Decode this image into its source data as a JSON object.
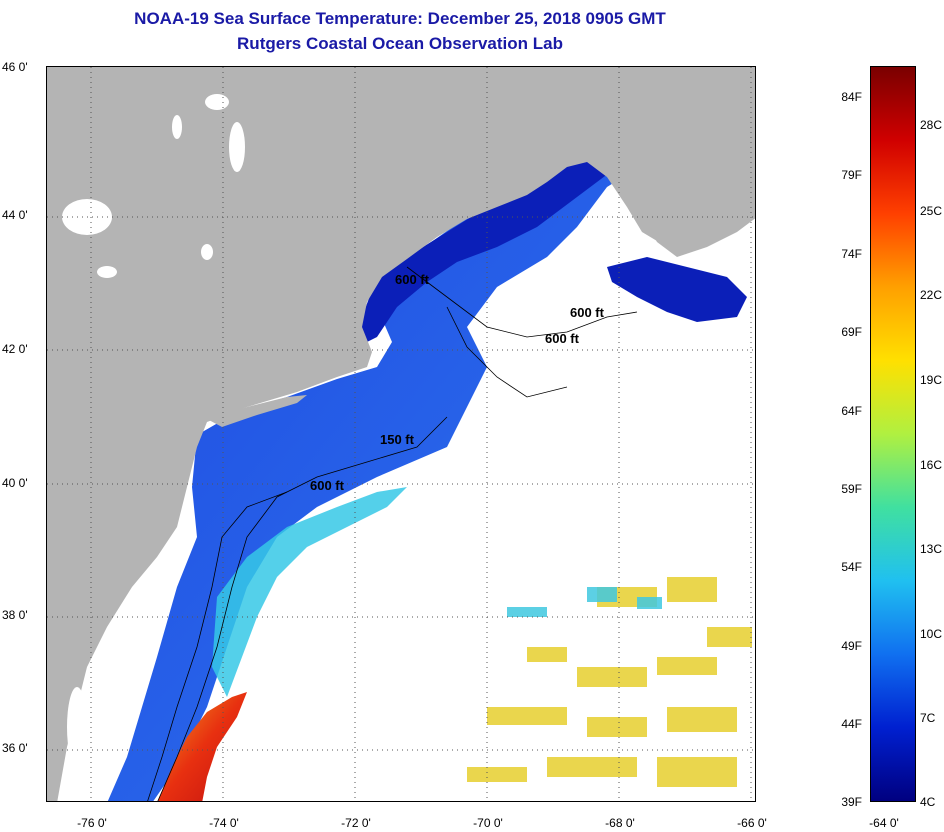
{
  "title": {
    "line1": "NOAA-19 Sea Surface Temperature:  December 25, 2018 0905 GMT",
    "line2": "Rutgers Coastal Ocean Observation Lab"
  },
  "map": {
    "lat_labels": [
      "46 0'",
      "44 0'",
      "42 0'",
      "40 0'",
      "38 0'",
      "36 0'"
    ],
    "lon_labels": [
      "-76 0'",
      "-74 0'",
      "-72 0'",
      "-70 0'",
      "-68 0'",
      "-66 0'",
      "-64 0'"
    ],
    "contour_labels": [
      "600 ft",
      "600 ft",
      "600 ft",
      "150 ft",
      "600 ft"
    ],
    "colors": {
      "land": "#b4b4b4",
      "lakes": "#ffffff",
      "cloud": "#ffffff",
      "deep_blue": "#0b1fb8",
      "mid_blue": "#2a5ae8",
      "cyan": "#36c8e6",
      "yellow": "#e8d23a",
      "orange": "#f08020",
      "red": "#dc2010"
    }
  },
  "colorbar": {
    "f_labels": [
      "84F",
      "79F",
      "74F",
      "69F",
      "64F",
      "59F",
      "54F",
      "49F",
      "44F",
      "39F"
    ],
    "c_labels": [
      "28C",
      "25C",
      "22C",
      "19C",
      "16C",
      "13C",
      "10C",
      "7C",
      "4C"
    ],
    "colors": [
      "#7a0000",
      "#d00000",
      "#ff4000",
      "#ffa000",
      "#ffe000",
      "#b0f040",
      "#40e0a0",
      "#20c0f0",
      "#1070f0",
      "#0020d0",
      "#000080"
    ]
  }
}
